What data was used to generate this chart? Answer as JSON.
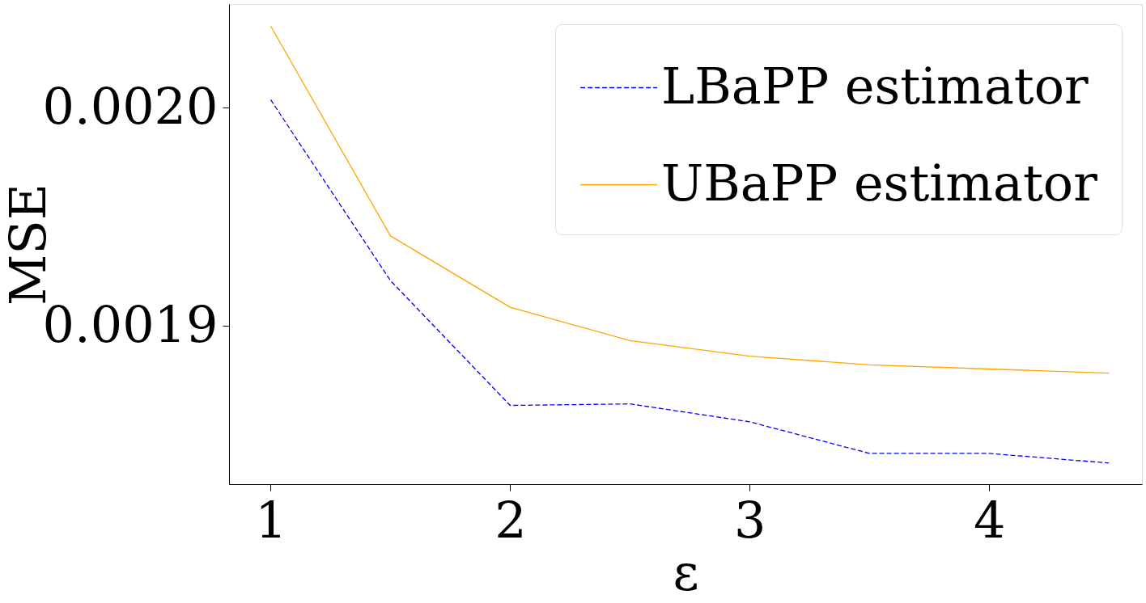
{
  "chart_data": {
    "type": "line",
    "xlabel": "ε",
    "ylabel": "MSE",
    "x": [
      1,
      1.5,
      2,
      2.5,
      3,
      3.5,
      4,
      4.5
    ],
    "series": [
      {
        "name": "LBaPP estimator",
        "color": "#0000ff",
        "line_style": "dashed",
        "values": [
          0.0020037,
          0.0019208,
          0.0018636,
          0.0018643,
          0.0018561,
          0.0018416,
          0.0018416,
          0.0018372
        ]
      },
      {
        "name": "UBaPP estimator",
        "color": "#ffa500",
        "line_style": "solid",
        "values": [
          0.0020375,
          0.0019413,
          0.0019086,
          0.0018933,
          0.0018862,
          0.0018822,
          0.0018803,
          0.0018784
        ]
      }
    ],
    "xlim": [
      0.826,
      4.638
    ],
    "ylim": [
      0.0018275,
      0.0020476
    ],
    "xticks": [
      1,
      2,
      3,
      4
    ],
    "yticks": [
      {
        "value": 0.0019,
        "label": "0.0019"
      },
      {
        "value": 0.002,
        "label": "0.0020"
      }
    ],
    "grid": false,
    "legend": "top right",
    "marker": "none"
  }
}
